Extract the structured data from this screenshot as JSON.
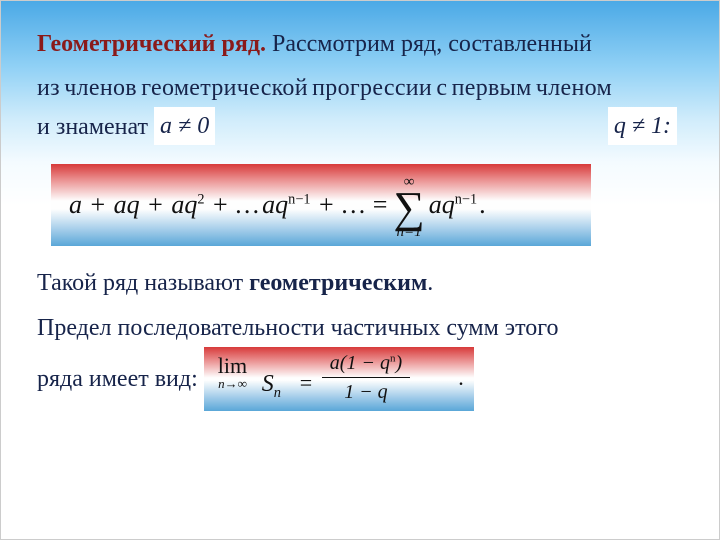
{
  "colors": {
    "heading": "#8a1a1a",
    "body_text": "#17244a",
    "sky_gradient": [
      "#4ba9e6",
      "#8fd0f5",
      "#d0ecfb",
      "#f4fbff",
      "#ffffff"
    ],
    "formula_gradient": [
      "#d73a3a",
      "#e98b8b",
      "#fefefe",
      "#9dc9e8",
      "#5aa7d8"
    ]
  },
  "typography": {
    "body_family": "Times New Roman",
    "body_size_pt": 18,
    "formula_size_pt": 20
  },
  "text": {
    "title": "Геометрический ряд.",
    "title_cont": "  Рассмотрим ряд, составленный",
    "line2": "из членов геометрической прогрессии с первым членом",
    "line3_a": "и знаменат",
    "cond_a": "a ≠ 0",
    "cond_q": "q ≠ 1:",
    "para2_a": "Такой ряд называют ",
    "para2_b": "геометрическим",
    "para2_c": ".",
    "para3": "Предел последовательности частичных сумм этого",
    "para4": "ряда имеет вид:"
  },
  "formula1": {
    "lhs_terms": [
      "a",
      "aq",
      "aq²",
      "…",
      "aqⁿ⁻¹",
      "…"
    ],
    "equals": "=",
    "sum_lower": "n=1",
    "sum_upper": "∞",
    "sum_term": "aqⁿ⁻¹",
    "trailing": "."
  },
  "formula2": {
    "lim": "lim",
    "lim_sub": "n→∞",
    "Sn": "Sₙ",
    "equals": "=",
    "numerator": "a(1 − qⁿ)",
    "denominator": "1 − q",
    "trailing": "."
  }
}
